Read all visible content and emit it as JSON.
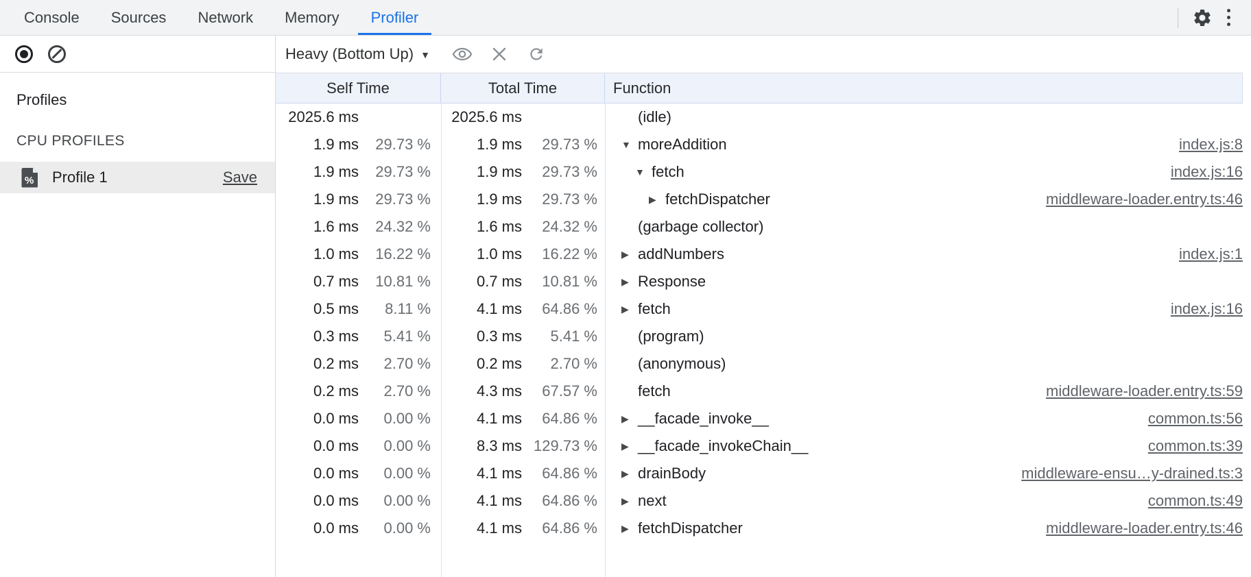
{
  "tabbar": {
    "tabs": [
      {
        "label": "Console"
      },
      {
        "label": "Sources"
      },
      {
        "label": "Network"
      },
      {
        "label": "Memory"
      },
      {
        "label": "Profiler"
      }
    ],
    "active_tab": "Profiler",
    "icons": [
      "gear-icon",
      "more-menu-icon"
    ]
  },
  "profiler_toolbar": {
    "icons": [
      "record-icon",
      "clear-block-icon"
    ]
  },
  "view_toolbar": {
    "dropdown_label": "Heavy (Bottom Up)",
    "caret": "▼",
    "icons": [
      "eye-icon",
      "close-icon",
      "refresh-icon"
    ]
  },
  "sidebar": {
    "profiles_heading": "Profiles",
    "section_heading": "CPU PROFILES",
    "profile": {
      "name": "Profile 1",
      "save_label": "Save",
      "icon": "profile-doc-icon",
      "selected": true
    }
  },
  "grid": {
    "columns": [
      "Self Time",
      "Total Time",
      "Function"
    ],
    "glyphs": {
      "expanded": "▼",
      "collapsed": "▶"
    },
    "rows": [
      {
        "self_ms": "2025.6 ms",
        "self_pct": "",
        "total_ms": "2025.6 ms",
        "total_pct": "",
        "fn": "(idle)",
        "arrow": "none",
        "indent": 0,
        "link": ""
      },
      {
        "self_ms": "1.9 ms",
        "self_pct": "29.73 %",
        "total_ms": "1.9 ms",
        "total_pct": "29.73 %",
        "fn": "moreAddition",
        "arrow": "expanded",
        "indent": 0,
        "link": "index.js:8"
      },
      {
        "self_ms": "1.9 ms",
        "self_pct": "29.73 %",
        "total_ms": "1.9 ms",
        "total_pct": "29.73 %",
        "fn": "fetch",
        "arrow": "expanded",
        "indent": 1,
        "link": "index.js:16"
      },
      {
        "self_ms": "1.9 ms",
        "self_pct": "29.73 %",
        "total_ms": "1.9 ms",
        "total_pct": "29.73 %",
        "fn": "fetchDispatcher",
        "arrow": "collapsed",
        "indent": 2,
        "link": "middleware-loader.entry.ts:46"
      },
      {
        "self_ms": "1.6 ms",
        "self_pct": "24.32 %",
        "total_ms": "1.6 ms",
        "total_pct": "24.32 %",
        "fn": "(garbage collector)",
        "arrow": "none",
        "indent": 0,
        "link": ""
      },
      {
        "self_ms": "1.0 ms",
        "self_pct": "16.22 %",
        "total_ms": "1.0 ms",
        "total_pct": "16.22 %",
        "fn": "addNumbers",
        "arrow": "collapsed",
        "indent": 0,
        "link": "index.js:1"
      },
      {
        "self_ms": "0.7 ms",
        "self_pct": "10.81 %",
        "total_ms": "0.7 ms",
        "total_pct": "10.81 %",
        "fn": "Response",
        "arrow": "collapsed",
        "indent": 0,
        "link": ""
      },
      {
        "self_ms": "0.5 ms",
        "self_pct": "8.11 %",
        "total_ms": "4.1 ms",
        "total_pct": "64.86 %",
        "fn": "fetch",
        "arrow": "collapsed",
        "indent": 0,
        "link": "index.js:16"
      },
      {
        "self_ms": "0.3 ms",
        "self_pct": "5.41 %",
        "total_ms": "0.3 ms",
        "total_pct": "5.41 %",
        "fn": "(program)",
        "arrow": "none",
        "indent": 0,
        "link": ""
      },
      {
        "self_ms": "0.2 ms",
        "self_pct": "2.70 %",
        "total_ms": "0.2 ms",
        "total_pct": "2.70 %",
        "fn": "(anonymous)",
        "arrow": "none",
        "indent": 0,
        "link": ""
      },
      {
        "self_ms": "0.2 ms",
        "self_pct": "2.70 %",
        "total_ms": "4.3 ms",
        "total_pct": "67.57 %",
        "fn": "fetch",
        "arrow": "none",
        "indent": 0,
        "link": "middleware-loader.entry.ts:59"
      },
      {
        "self_ms": "0.0 ms",
        "self_pct": "0.00 %",
        "total_ms": "4.1 ms",
        "total_pct": "64.86 %",
        "fn": "__facade_invoke__",
        "arrow": "collapsed",
        "indent": 0,
        "link": "common.ts:56"
      },
      {
        "self_ms": "0.0 ms",
        "self_pct": "0.00 %",
        "total_ms": "8.3 ms",
        "total_pct": "129.73 %",
        "fn": "__facade_invokeChain__",
        "arrow": "collapsed",
        "indent": 0,
        "link": "common.ts:39"
      },
      {
        "self_ms": "0.0 ms",
        "self_pct": "0.00 %",
        "total_ms": "4.1 ms",
        "total_pct": "64.86 %",
        "fn": "drainBody",
        "arrow": "collapsed",
        "indent": 0,
        "link": "middleware-ensu…y-drained.ts:3"
      },
      {
        "self_ms": "0.0 ms",
        "self_pct": "0.00 %",
        "total_ms": "4.1 ms",
        "total_pct": "64.86 %",
        "fn": "next",
        "arrow": "collapsed",
        "indent": 0,
        "link": "common.ts:49"
      },
      {
        "self_ms": "0.0 ms",
        "self_pct": "0.00 %",
        "total_ms": "4.1 ms",
        "total_pct": "64.86 %",
        "fn": "fetchDispatcher",
        "arrow": "collapsed",
        "indent": 0,
        "link": "middleware-loader.entry.ts:46"
      }
    ]
  },
  "colors": {
    "accent": "#1a73e8",
    "tabbar_bg": "#f1f3f4",
    "header_bg": "#eef2fb",
    "grid_line": "#d8e1f2",
    "selected_row_bg": "#ececec",
    "link_gray": "#5f6368",
    "text": "#202124",
    "pct_gray": "#6a6e72"
  }
}
